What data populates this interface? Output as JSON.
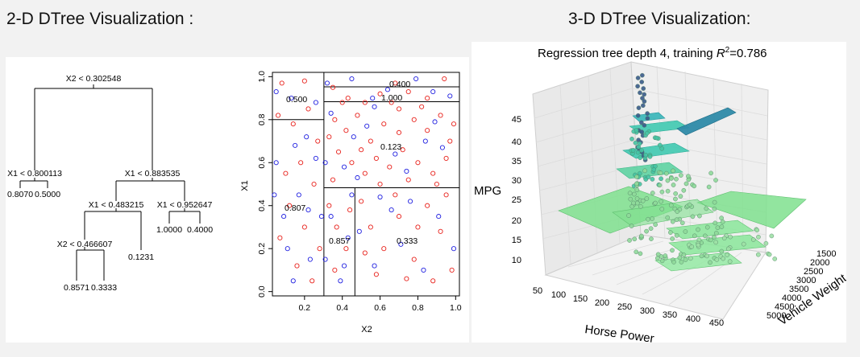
{
  "headings": {
    "left": "2-D DTree Visualization :",
    "right": "3-D DTree Visualization:"
  },
  "tree": {
    "root": "X2 < 0.302548",
    "n_left": "X1 < 0.800113",
    "leaf_ll": "0.8070",
    "leaf_lr": "0.5000",
    "n_right": "X1 < 0.883535",
    "n_rl": "X1 < 0.483215",
    "n_rr": "X1 < 0.952647",
    "leaf_rrl": "1.0000",
    "leaf_rrr": "0.4000",
    "n_rll": "X2 < 0.466607",
    "leaf_rlr": "0.1231",
    "leaf_rlll": "0.8571",
    "leaf_rllr": "0.3333"
  },
  "scatter": {
    "xlabel": "X2",
    "ylabel": "X1",
    "xticks": [
      "0.2",
      "0.4",
      "0.6",
      "0.8",
      "1.0"
    ],
    "yticks": [
      "0.0",
      "0.2",
      "0.4",
      "0.6",
      "0.8",
      "1.0"
    ],
    "region_labels": {
      "r1": "0.400",
      "r2": "1.000",
      "r3": "0.500",
      "r4": "0.123",
      "r5": "0.807",
      "r6": "0.857",
      "r7": "0.333"
    },
    "colors": {
      "class_a": "#e8211b",
      "class_b": "#1f1fe0"
    }
  },
  "chart_data": {
    "type": "scatter",
    "xlabel": "X2",
    "ylabel": "X1",
    "xlim": [
      0.03,
      1.02
    ],
    "ylim": [
      -0.02,
      1.02
    ],
    "partitions": [
      {
        "x_split": 0.302548
      },
      {
        "y_split": 0.800113,
        "x_range": [
          0.03,
          0.302548
        ]
      },
      {
        "y_split": 0.883535,
        "x_range": [
          0.302548,
          1.02
        ]
      },
      {
        "y_split": 0.952647,
        "x_range": [
          0.302548,
          1.02
        ]
      },
      {
        "y_split": 0.483215,
        "x_range": [
          0.302548,
          1.02
        ]
      },
      {
        "x_split": 0.466607,
        "y_range": [
          -0.02,
          0.483215
        ]
      }
    ],
    "series": [
      {
        "color": "#e8211b",
        "points": [
          [
            0.08,
            0.97
          ],
          [
            0.2,
            0.98
          ],
          [
            0.35,
            0.95
          ],
          [
            0.43,
            0.9
          ],
          [
            0.52,
            0.88
          ],
          [
            0.6,
            0.92
          ],
          [
            0.68,
            0.97
          ],
          [
            0.75,
            0.93
          ],
          [
            0.85,
            0.9
          ],
          [
            0.94,
            0.99
          ],
          [
            0.06,
            0.82
          ],
          [
            0.14,
            0.78
          ],
          [
            0.22,
            0.85
          ],
          [
            0.27,
            0.7
          ],
          [
            0.18,
            0.6
          ],
          [
            0.1,
            0.55
          ],
          [
            0.25,
            0.5
          ],
          [
            0.12,
            0.4
          ],
          [
            0.2,
            0.3
          ],
          [
            0.07,
            0.25
          ],
          [
            0.16,
            0.12
          ],
          [
            0.24,
            0.05
          ],
          [
            0.28,
            0.2
          ],
          [
            0.36,
            0.8
          ],
          [
            0.42,
            0.75
          ],
          [
            0.48,
            0.82
          ],
          [
            0.55,
            0.7
          ],
          [
            0.62,
            0.78
          ],
          [
            0.7,
            0.85
          ],
          [
            0.78,
            0.8
          ],
          [
            0.85,
            0.75
          ],
          [
            0.92,
            0.82
          ],
          [
            0.97,
            0.7
          ],
          [
            0.38,
            0.65
          ],
          [
            0.45,
            0.6
          ],
          [
            0.52,
            0.55
          ],
          [
            0.58,
            0.62
          ],
          [
            0.65,
            0.58
          ],
          [
            0.72,
            0.66
          ],
          [
            0.8,
            0.6
          ],
          [
            0.88,
            0.55
          ],
          [
            0.95,
            0.62
          ],
          [
            0.35,
            0.52
          ],
          [
            0.6,
            0.5
          ],
          [
            0.75,
            0.52
          ],
          [
            0.9,
            0.5
          ],
          [
            0.4,
            0.88
          ],
          [
            0.66,
            0.88
          ],
          [
            0.82,
            0.86
          ],
          [
            0.33,
            0.72
          ],
          [
            0.5,
            0.66
          ],
          [
            0.7,
            0.74
          ],
          [
            0.99,
            0.78
          ],
          [
            0.33,
            0.4
          ],
          [
            0.37,
            0.3
          ],
          [
            0.42,
            0.2
          ],
          [
            0.36,
            0.1
          ],
          [
            0.44,
            0.38
          ],
          [
            0.5,
            0.42
          ],
          [
            0.55,
            0.3
          ],
          [
            0.62,
            0.2
          ],
          [
            0.7,
            0.35
          ],
          [
            0.78,
            0.15
          ],
          [
            0.85,
            0.4
          ],
          [
            0.92,
            0.28
          ],
          [
            0.98,
            0.1
          ],
          [
            0.58,
            0.08
          ],
          [
            0.68,
            0.45
          ],
          [
            0.88,
            0.05
          ],
          [
            0.95,
            0.45
          ],
          [
            0.52,
            0.18
          ],
          [
            0.8,
            0.3
          ],
          [
            0.74,
            0.06
          ]
        ]
      },
      {
        "color": "#1f1fe0",
        "points": [
          [
            0.05,
            0.93
          ],
          [
            0.13,
            0.9
          ],
          [
            0.26,
            0.88
          ],
          [
            0.32,
            0.97
          ],
          [
            0.45,
            0.99
          ],
          [
            0.56,
            0.9
          ],
          [
            0.64,
            0.94
          ],
          [
            0.79,
            0.99
          ],
          [
            0.88,
            0.93
          ],
          [
            0.97,
            0.91
          ],
          [
            0.04,
            0.45
          ],
          [
            0.09,
            0.35
          ],
          [
            0.15,
            0.68
          ],
          [
            0.21,
            0.72
          ],
          [
            0.26,
            0.62
          ],
          [
            0.11,
            0.2
          ],
          [
            0.17,
            0.45
          ],
          [
            0.23,
            0.15
          ],
          [
            0.29,
            0.35
          ],
          [
            0.05,
            0.6
          ],
          [
            0.14,
            0.05
          ],
          [
            0.22,
            0.38
          ],
          [
            0.34,
            0.83
          ],
          [
            0.46,
            0.72
          ],
          [
            0.57,
            0.86
          ],
          [
            0.68,
            0.64
          ],
          [
            0.84,
            0.7
          ],
          [
            0.41,
            0.58
          ],
          [
            0.53,
            0.77
          ],
          [
            0.74,
            0.56
          ],
          [
            0.93,
            0.67
          ],
          [
            0.31,
            0.6
          ],
          [
            0.48,
            0.53
          ],
          [
            0.89,
            0.79
          ],
          [
            0.34,
            0.35
          ],
          [
            0.39,
            0.05
          ],
          [
            0.43,
            0.25
          ],
          [
            0.31,
            0.15
          ],
          [
            0.45,
            0.45
          ],
          [
            0.41,
            0.12
          ],
          [
            0.49,
            0.28
          ],
          [
            0.57,
            0.12
          ],
          [
            0.66,
            0.38
          ],
          [
            0.71,
            0.22
          ],
          [
            0.83,
            0.1
          ],
          [
            0.91,
            0.35
          ],
          [
            0.99,
            0.2
          ],
          [
            0.6,
            0.44
          ],
          [
            0.76,
            0.42
          ]
        ]
      }
    ]
  },
  "plot3d": {
    "title_prefix": "Regression tree depth 4, training ",
    "title_r": "R",
    "title_sup": "2",
    "title_suffix": "=0.786",
    "zlabel": "MPG",
    "xlabel": "Horse Power",
    "ylabel": "Vehicle Weight",
    "zticks": [
      "45",
      "40",
      "35",
      "30",
      "25",
      "20",
      "15",
      "10"
    ],
    "xticks": [
      "50",
      "100",
      "150",
      "200",
      "250",
      "300",
      "350",
      "400",
      "450"
    ],
    "yticks": [
      "1500",
      "2000",
      "2500",
      "3000",
      "3500",
      "4000",
      "4500",
      "5000"
    ],
    "colors": {
      "teal": "#3fc9b0",
      "green": "#7fe08e",
      "dark": "#2e8aa8",
      "point_dark": "#3a5a8a"
    }
  }
}
